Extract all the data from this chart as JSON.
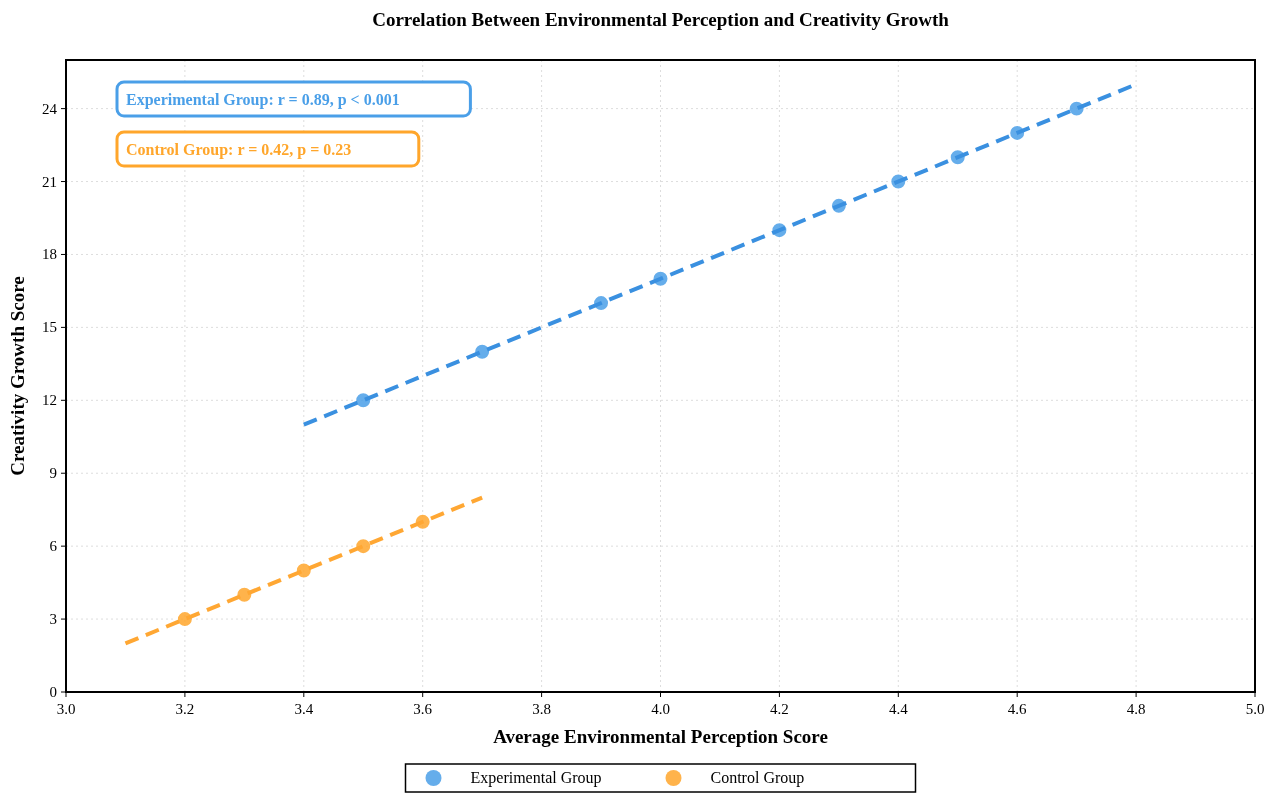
{
  "chart_data": {
    "type": "scatter",
    "title": "Correlation Between Environmental Perception and Creativity Growth",
    "xlabel": "Average Environmental Perception Score",
    "ylabel": "Creativity Growth Score",
    "xlim": [
      3.0,
      5.0
    ],
    "xticks": [
      {
        "value": 3.0,
        "label": "3.0"
      },
      3.2,
      3.4,
      3.6,
      3.8,
      {
        "value": 4.0,
        "label": "4.0"
      },
      4.2,
      4.4,
      4.6,
      4.8,
      {
        "value": 5.0,
        "label": "5.0"
      }
    ],
    "ylim": [
      0,
      26
    ],
    "yticks": [
      0,
      3,
      6,
      9,
      12,
      15,
      18,
      21,
      24
    ],
    "grid": true,
    "legend": "bottom",
    "marker": "circle",
    "annotations": [
      "Experimental Group: r = 0.89, p < 0.001",
      "Control Group: r = 0.42, p = 0.23"
    ],
    "series": [
      {
        "name": "Experimental Group",
        "color": "#4a9fe8",
        "x": [
          3.5,
          3.7,
          3.9,
          4.0,
          4.2,
          4.3,
          4.4,
          4.5,
          4.6,
          4.7
        ],
        "values": [
          12,
          14,
          16,
          17,
          19,
          20,
          21,
          22,
          23,
          24
        ]
      },
      {
        "name": "Control Group",
        "color": "#ffa62b",
        "x": [
          3.2,
          3.3,
          3.4,
          3.5,
          3.6
        ],
        "values": [
          3,
          4,
          5,
          6,
          7
        ]
      },
      {
        "type": "line",
        "marker": "none",
        "line_style": "dashed",
        "color": "#3a90e0",
        "x": [
          3.4,
          4.8
        ],
        "values": [
          11,
          25
        ]
      },
      {
        "type": "line",
        "marker": "none",
        "line_style": "dashed",
        "color": "#ffa733",
        "x": [
          3.1,
          3.7
        ],
        "values": [
          2,
          8
        ]
      }
    ]
  }
}
